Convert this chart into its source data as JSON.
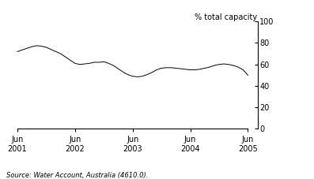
{
  "title": "",
  "ylabel": "% total capacity",
  "source_text": "Source: Water Account, Australia (4610.0).",
  "ylim": [
    0,
    100
  ],
  "yticks": [
    0,
    20,
    40,
    60,
    80,
    100
  ],
  "line_color": "#000000",
  "background_color": "#ffffff",
  "x_tick_labels": [
    "Jun\n2001",
    "Jun\n2002",
    "Jun\n2003",
    "Jun\n2004",
    "Jun\n2005"
  ],
  "x_tick_positions": [
    0,
    12,
    24,
    36,
    48
  ],
  "xlim": [
    -1,
    50
  ],
  "data_points": [
    [
      0,
      72
    ],
    [
      1,
      73.5
    ],
    [
      2,
      75
    ],
    [
      3,
      76.5
    ],
    [
      4,
      77.5
    ],
    [
      5,
      77
    ],
    [
      6,
      76
    ],
    [
      7,
      74
    ],
    [
      8,
      72
    ],
    [
      9,
      70
    ],
    [
      10,
      67
    ],
    [
      11,
      64
    ],
    [
      12,
      61
    ],
    [
      13,
      60
    ],
    [
      14,
      60.5
    ],
    [
      15,
      61
    ],
    [
      16,
      62
    ],
    [
      17,
      62
    ],
    [
      18,
      62.5
    ],
    [
      19,
      61
    ],
    [
      20,
      59
    ],
    [
      21,
      56
    ],
    [
      22,
      53
    ],
    [
      23,
      50.5
    ],
    [
      24,
      49
    ],
    [
      25,
      48.5
    ],
    [
      26,
      49
    ],
    [
      27,
      50.5
    ],
    [
      28,
      52.5
    ],
    [
      29,
      55
    ],
    [
      30,
      56.5
    ],
    [
      31,
      57
    ],
    [
      32,
      57
    ],
    [
      33,
      56.5
    ],
    [
      34,
      56
    ],
    [
      35,
      55.5
    ],
    [
      36,
      55
    ],
    [
      37,
      55
    ],
    [
      38,
      55.5
    ],
    [
      39,
      56.5
    ],
    [
      40,
      57.5
    ],
    [
      41,
      59
    ],
    [
      42,
      60
    ],
    [
      43,
      60.5
    ],
    [
      44,
      60
    ],
    [
      45,
      59
    ],
    [
      46,
      57.5
    ],
    [
      47,
      55
    ],
    [
      48,
      50
    ]
  ]
}
